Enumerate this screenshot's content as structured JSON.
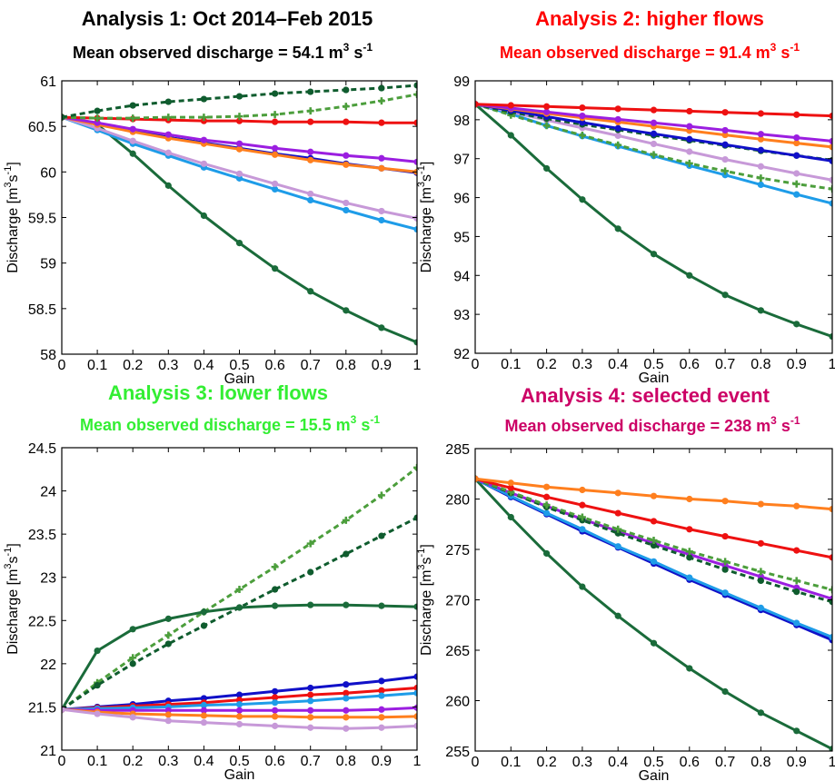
{
  "chart_data": [
    {
      "type": "line",
      "title": "Analysis 1: Oct 2014–Feb 2015",
      "title_color": "#000000",
      "subtitle": {
        "prefix": "Mean observed discharge = 54.1 m",
        "sup1": "3",
        "mid": " s",
        "sup2": "-1"
      },
      "xlabel": "Gain",
      "ylabel": {
        "main": "Discharge [m",
        "sup1": "3",
        "mid": "s",
        "sup2": "-1",
        "end": "]"
      },
      "xlim": [
        0,
        1
      ],
      "ylim": [
        58,
        61
      ],
      "xticks": [
        "0",
        "0.1",
        "0.2",
        "0.3",
        "0.4",
        "0.5",
        "0.6",
        "0.7",
        "0.8",
        "0.9",
        "1"
      ],
      "yticks": [
        "58",
        "58.5",
        "59",
        "59.5",
        "60",
        "60.5",
        "61"
      ],
      "grid": false,
      "x": [
        0,
        0.1,
        0.2,
        0.3,
        0.4,
        0.5,
        0.6,
        0.7,
        0.8,
        0.9,
        1
      ],
      "series": [
        {
          "color": "#1a6b3a",
          "dash": false,
          "marker": "dot",
          "values": [
            60.6,
            60.52,
            60.2,
            59.85,
            59.52,
            59.22,
            58.94,
            58.69,
            58.48,
            58.29,
            58.13
          ]
        },
        {
          "color": "#1e9ce8",
          "dash": false,
          "marker": "dot",
          "values": [
            60.6,
            60.46,
            60.31,
            60.18,
            60.05,
            59.93,
            59.81,
            59.69,
            59.58,
            59.47,
            59.37
          ]
        },
        {
          "color": "#c799d8",
          "dash": false,
          "marker": "dot",
          "values": [
            60.6,
            60.48,
            60.34,
            60.21,
            60.09,
            59.98,
            59.87,
            59.76,
            59.66,
            59.57,
            59.49
          ]
        },
        {
          "color": "#1010c8",
          "dash": false,
          "marker": "dot",
          "values": [
            60.6,
            60.53,
            60.45,
            60.38,
            60.32,
            60.26,
            60.2,
            60.15,
            60.09,
            60.04,
            59.99
          ]
        },
        {
          "color": "#ff7f1e",
          "dash": false,
          "marker": "dot",
          "values": [
            60.6,
            60.52,
            60.44,
            60.37,
            60.31,
            60.25,
            60.19,
            60.13,
            60.08,
            60.04,
            60.0
          ]
        },
        {
          "color": "#9b1ee0",
          "dash": false,
          "marker": "dot",
          "values": [
            60.6,
            60.54,
            60.47,
            60.41,
            60.35,
            60.31,
            60.26,
            60.22,
            60.18,
            60.15,
            60.11
          ]
        },
        {
          "color": "#ee1111",
          "dash": false,
          "marker": "dot",
          "values": [
            60.6,
            60.59,
            60.58,
            60.57,
            60.56,
            60.56,
            60.55,
            60.55,
            60.55,
            60.54,
            60.54
          ]
        },
        {
          "color": "#4c9e3c",
          "dash": true,
          "marker": "plus",
          "values": [
            60.6,
            60.59,
            60.59,
            60.6,
            60.6,
            60.61,
            60.63,
            60.67,
            60.72,
            60.78,
            60.85
          ]
        },
        {
          "color": "#0f5c2e",
          "dash": true,
          "marker": "dot",
          "values": [
            60.6,
            60.67,
            60.73,
            60.77,
            60.8,
            60.83,
            60.86,
            60.88,
            60.9,
            60.92,
            60.95
          ]
        }
      ]
    },
    {
      "type": "line",
      "title": "Analysis 2: higher flows",
      "title_color": "#ff0000",
      "subtitle": {
        "prefix": "Mean observed discharge = 91.4 m",
        "sup1": "3",
        "mid": " s",
        "sup2": "-1"
      },
      "xlabel": "Gain",
      "ylabel": {
        "main": "Discharge [m",
        "sup1": "3",
        "mid": "s",
        "sup2": "-1",
        "end": "]"
      },
      "xlim": [
        0,
        1
      ],
      "ylim": [
        92,
        99
      ],
      "xticks": [
        "0",
        "0.1",
        "0.2",
        "0.3",
        "0.4",
        "0.5",
        "0.6",
        "0.7",
        "0.8",
        "0.9",
        "1"
      ],
      "yticks": [
        "92",
        "93",
        "94",
        "95",
        "96",
        "97",
        "98",
        "99"
      ],
      "grid": false,
      "x": [
        0,
        0.1,
        0.2,
        0.3,
        0.4,
        0.5,
        0.6,
        0.7,
        0.8,
        0.9,
        1
      ],
      "series": [
        {
          "color": "#1a6b3a",
          "dash": false,
          "marker": "dot",
          "values": [
            98.4,
            97.6,
            96.75,
            95.95,
            95.2,
            94.55,
            94.0,
            93.5,
            93.1,
            92.75,
            92.43
          ]
        },
        {
          "color": "#1e9ce8",
          "dash": false,
          "marker": "dot",
          "values": [
            98.4,
            98.15,
            97.85,
            97.58,
            97.32,
            97.07,
            96.82,
            96.58,
            96.33,
            96.08,
            95.85
          ]
        },
        {
          "color": "#c799d8",
          "dash": false,
          "marker": "dot",
          "values": [
            98.4,
            98.2,
            97.99,
            97.79,
            97.59,
            97.38,
            97.18,
            96.98,
            96.8,
            96.62,
            96.45
          ]
        },
        {
          "color": "#4c9e3c",
          "dash": true,
          "marker": "plus",
          "values": [
            98.4,
            98.12,
            97.85,
            97.6,
            97.35,
            97.1,
            96.88,
            96.68,
            96.5,
            96.35,
            96.22
          ]
        },
        {
          "color": "#0f5c2e",
          "dash": true,
          "marker": "dot",
          "values": [
            98.4,
            98.2,
            98.03,
            97.88,
            97.74,
            97.6,
            97.47,
            97.34,
            97.2,
            97.08,
            96.96
          ]
        },
        {
          "color": "#1010c8",
          "dash": false,
          "marker": "dot",
          "values": [
            98.4,
            98.24,
            98.08,
            97.93,
            97.78,
            97.64,
            97.5,
            97.36,
            97.22,
            97.08,
            96.94
          ]
        },
        {
          "color": "#ff7f1e",
          "dash": false,
          "marker": "dot",
          "values": [
            98.4,
            98.28,
            98.16,
            98.05,
            97.94,
            97.83,
            97.72,
            97.61,
            97.5,
            97.4,
            97.3
          ]
        },
        {
          "color": "#9b1ee0",
          "dash": false,
          "marker": "dot",
          "values": [
            98.4,
            98.3,
            98.2,
            98.1,
            98.01,
            97.92,
            97.83,
            97.73,
            97.63,
            97.54,
            97.45
          ]
        },
        {
          "color": "#ee1111",
          "dash": false,
          "marker": "dot",
          "values": [
            98.4,
            98.37,
            98.34,
            98.31,
            98.28,
            98.25,
            98.22,
            98.19,
            98.16,
            98.13,
            98.1
          ]
        }
      ]
    },
    {
      "type": "line",
      "title": "Analysis 3: lower flows",
      "title_color": "#33ee33",
      "subtitle": {
        "prefix": "Mean observed discharge = 15.5 m",
        "sup1": "3",
        "mid": " s",
        "sup2": "-1"
      },
      "xlabel": "Gain",
      "ylabel": {
        "main": "Discharge [m",
        "sup1": "3",
        "mid": "s",
        "sup2": "-1",
        "end": "]"
      },
      "xlim": [
        0,
        1
      ],
      "ylim": [
        21,
        24.5
      ],
      "xticks": [
        "0",
        "0.1",
        "0.2",
        "0.3",
        "0.4",
        "0.5",
        "0.6",
        "0.7",
        "0.8",
        "0.9",
        "1"
      ],
      "yticks": [
        "21",
        "21.5",
        "22",
        "22.5",
        "23",
        "23.5",
        "24",
        "24.5"
      ],
      "grid": false,
      "x": [
        0,
        0.1,
        0.2,
        0.3,
        0.4,
        0.5,
        0.6,
        0.7,
        0.8,
        0.9,
        1
      ],
      "series": [
        {
          "color": "#4c9e3c",
          "dash": true,
          "marker": "plus",
          "values": [
            21.47,
            21.78,
            22.07,
            22.33,
            22.6,
            22.86,
            23.12,
            23.39,
            23.66,
            23.95,
            24.27
          ]
        },
        {
          "color": "#0f5c2e",
          "dash": true,
          "marker": "dot",
          "values": [
            21.47,
            21.75,
            22.0,
            22.23,
            22.44,
            22.65,
            22.86,
            23.06,
            23.27,
            23.48,
            23.69
          ]
        },
        {
          "color": "#1a6b3a",
          "dash": false,
          "marker": "dot",
          "values": [
            21.47,
            22.15,
            22.4,
            22.52,
            22.6,
            22.65,
            22.67,
            22.68,
            22.68,
            22.67,
            22.66
          ]
        },
        {
          "color": "#1010c8",
          "dash": false,
          "marker": "dot",
          "values": [
            21.47,
            21.5,
            21.53,
            21.57,
            21.6,
            21.64,
            21.68,
            21.72,
            21.76,
            21.8,
            21.85
          ]
        },
        {
          "color": "#ee1111",
          "dash": false,
          "marker": "dot",
          "values": [
            21.47,
            21.49,
            21.51,
            21.53,
            21.55,
            21.58,
            21.61,
            21.64,
            21.66,
            21.69,
            21.72
          ]
        },
        {
          "color": "#1e9ce8",
          "dash": false,
          "marker": "dot",
          "values": [
            21.47,
            21.48,
            21.49,
            21.5,
            21.52,
            21.53,
            21.55,
            21.57,
            21.6,
            21.63,
            21.66
          ]
        },
        {
          "color": "#9b1ee0",
          "dash": false,
          "marker": "dot",
          "values": [
            21.47,
            21.46,
            21.46,
            21.46,
            21.46,
            21.46,
            21.46,
            21.46,
            21.46,
            21.47,
            21.49
          ]
        },
        {
          "color": "#ff7f1e",
          "dash": false,
          "marker": "dot",
          "values": [
            21.47,
            21.44,
            21.42,
            21.41,
            21.4,
            21.39,
            21.39,
            21.38,
            21.38,
            21.38,
            21.39
          ]
        },
        {
          "color": "#c799d8",
          "dash": false,
          "marker": "dot",
          "values": [
            21.47,
            21.42,
            21.38,
            21.34,
            21.32,
            21.3,
            21.28,
            21.26,
            21.25,
            21.26,
            21.28
          ]
        }
      ]
    },
    {
      "type": "line",
      "title": "Analysis 4: selected  event",
      "title_color": "#cc0066",
      "subtitle": {
        "prefix": "Mean observed discharge = 238 m",
        "sup1": "3",
        "mid": " s",
        "sup2": "-1"
      },
      "xlabel": "Gain",
      "ylabel": {
        "main": "Discharge [m",
        "sup1": "3",
        "mid": "s",
        "sup2": "-1",
        "end": "]"
      },
      "xlim": [
        0,
        1
      ],
      "ylim": [
        255,
        285
      ],
      "xticks": [
        "0",
        "0.1",
        "0.2",
        "0.3",
        "0.4",
        "0.5",
        "0.6",
        "0.7",
        "0.8",
        "0.9",
        "1"
      ],
      "yticks": [
        "255",
        "260",
        "265",
        "270",
        "275",
        "280",
        "285"
      ],
      "grid": false,
      "x": [
        0,
        0.1,
        0.2,
        0.3,
        0.4,
        0.5,
        0.6,
        0.7,
        0.8,
        0.9,
        1
      ],
      "series": [
        {
          "color": "#1a6b3a",
          "dash": false,
          "marker": "dot",
          "values": [
            282.0,
            278.2,
            274.6,
            271.3,
            268.4,
            265.7,
            263.2,
            260.9,
            258.8,
            257.0,
            255.2
          ]
        },
        {
          "color": "#1010c8",
          "dash": false,
          "marker": "dot",
          "values": [
            282.0,
            280.2,
            278.5,
            276.8,
            275.2,
            273.6,
            272.0,
            270.5,
            269.0,
            267.5,
            266.0
          ]
        },
        {
          "color": "#1e9ce8",
          "dash": false,
          "marker": "dot",
          "values": [
            282.0,
            280.3,
            278.6,
            277.0,
            275.3,
            273.8,
            272.2,
            270.7,
            269.2,
            267.7,
            266.3
          ]
        },
        {
          "color": "#9b1ee0",
          "dash": false,
          "marker": "dot",
          "values": [
            282.0,
            280.6,
            279.3,
            278.0,
            276.8,
            275.6,
            274.5,
            273.4,
            272.3,
            271.2,
            270.1
          ]
        },
        {
          "color": "#0f5c2e",
          "dash": true,
          "marker": "dot",
          "values": [
            282.0,
            280.6,
            279.2,
            277.9,
            276.6,
            275.4,
            274.2,
            273.0,
            271.9,
            270.8,
            269.8
          ]
        },
        {
          "color": "#4c9e3c",
          "dash": true,
          "marker": "plus",
          "values": [
            282.0,
            280.7,
            279.4,
            278.2,
            277.0,
            275.9,
            274.8,
            273.8,
            272.8,
            271.9,
            271.0
          ]
        },
        {
          "color": "#ee1111",
          "dash": false,
          "marker": "dot",
          "values": [
            282.0,
            281.1,
            280.2,
            279.4,
            278.6,
            277.8,
            277.0,
            276.3,
            275.6,
            274.9,
            274.2
          ]
        },
        {
          "color": "#ff7f1e",
          "dash": false,
          "marker": "dot",
          "values": [
            282.0,
            281.6,
            281.2,
            280.9,
            280.6,
            280.3,
            280.0,
            279.8,
            279.5,
            279.3,
            279.0
          ]
        }
      ]
    }
  ]
}
